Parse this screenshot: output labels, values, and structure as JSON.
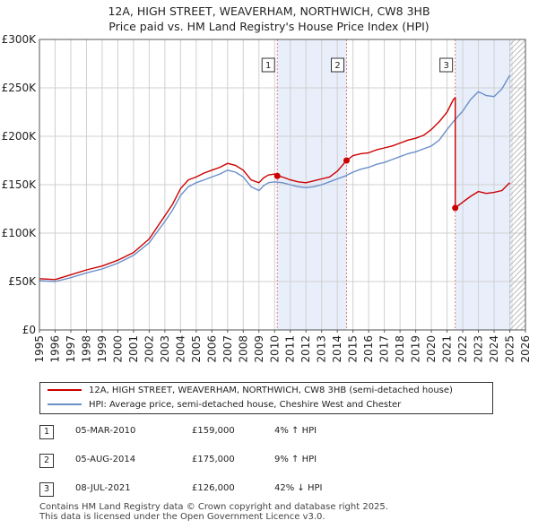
{
  "title": {
    "line1": "12A, HIGH STREET, WEAVERHAM, NORTHWICH, CW8 3HB",
    "line2": "Price paid vs. HM Land Registry's House Price Index (HPI)"
  },
  "colors": {
    "price_line": "#cc0000",
    "hpi_line": "#6b8fc9",
    "shade": "#e8eefa",
    "marker_line": "#e08080",
    "grid": "#d0d0d0",
    "hatch": "#999999"
  },
  "chart_data": {
    "type": "line",
    "xlim": [
      1995,
      2026
    ],
    "ylim": [
      0,
      300000
    ],
    "x_ticks": [
      "1995",
      "1996",
      "1997",
      "1998",
      "1999",
      "2000",
      "2001",
      "2002",
      "2003",
      "2004",
      "2005",
      "2006",
      "2007",
      "2008",
      "2009",
      "2010",
      "2011",
      "2012",
      "2013",
      "2014",
      "2015",
      "2016",
      "2017",
      "2018",
      "2019",
      "2020",
      "2021",
      "2022",
      "2023",
      "2024",
      "2025",
      "2026"
    ],
    "y_ticks": [
      {
        "value": 0,
        "label": "£0"
      },
      {
        "value": 50000,
        "label": "£50K"
      },
      {
        "value": 100000,
        "label": "£100K"
      },
      {
        "value": 150000,
        "label": "£150K"
      },
      {
        "value": 200000,
        "label": "£200K"
      },
      {
        "value": 250000,
        "label": "£250K"
      },
      {
        "value": 300000,
        "label": "£300K"
      }
    ],
    "shaded_ranges": [
      [
        2010.17,
        2014.59
      ],
      [
        2021.52,
        2025.2
      ]
    ],
    "hatched_from": 2025.0,
    "series": [
      {
        "name": "12A, HIGH STREET, WEAVERHAM, NORTHWICH, CW8 3HB (semi-detached house)",
        "key": "price",
        "x": [
          1995,
          1996,
          1997,
          1998,
          1999,
          2000,
          2001,
          2002,
          2003,
          2003.5,
          2004,
          2004.5,
          2005,
          2005.5,
          2006,
          2006.5,
          2007,
          2007.5,
          2008,
          2008.5,
          2009,
          2009.3,
          2009.6,
          2010,
          2010.17,
          2010.5,
          2011,
          2011.5,
          2012,
          2012.5,
          2013,
          2013.5,
          2014,
          2014.59,
          2015,
          2015.5,
          2016,
          2016.5,
          2017,
          2017.5,
          2018,
          2018.5,
          2019,
          2019.5,
          2020,
          2020.5,
          2021,
          2021.4,
          2021.52,
          2021.52,
          2022,
          2022.5,
          2023,
          2023.5,
          2024,
          2024.5,
          2025
        ],
        "y": [
          53000,
          52000,
          57000,
          62000,
          66000,
          72000,
          80000,
          94000,
          118000,
          130000,
          146000,
          155000,
          158000,
          162000,
          165000,
          168000,
          172000,
          170000,
          165000,
          155000,
          152000,
          157000,
          160000,
          161000,
          159000,
          158000,
          155000,
          153000,
          152000,
          154000,
          156000,
          158000,
          164000,
          175000,
          180000,
          182000,
          183000,
          186000,
          188000,
          190000,
          193000,
          196000,
          198000,
          201000,
          207000,
          215000,
          225000,
          238000,
          240000,
          126000,
          132000,
          138000,
          143000,
          141000,
          142000,
          144000,
          152000
        ]
      },
      {
        "name": "HPI: Average price, semi-detached house, Cheshire West and Chester",
        "key": "hpi",
        "x": [
          1995,
          1996,
          1997,
          1998,
          1999,
          2000,
          2001,
          2002,
          2003,
          2003.5,
          2004,
          2004.5,
          2005,
          2005.5,
          2006,
          2006.5,
          2007,
          2007.5,
          2008,
          2008.5,
          2009,
          2009.3,
          2009.6,
          2010,
          2010.5,
          2011,
          2011.5,
          2012,
          2012.5,
          2013,
          2013.5,
          2014,
          2014.5,
          2015,
          2015.5,
          2016,
          2016.5,
          2017,
          2017.5,
          2018,
          2018.5,
          2019,
          2019.5,
          2020,
          2020.5,
          2021,
          2021.5,
          2022,
          2022.5,
          2023,
          2023.5,
          2024,
          2024.5,
          2025
        ],
        "y": [
          51000,
          50000,
          54000,
          59000,
          63000,
          69000,
          77000,
          90000,
          112000,
          124000,
          139000,
          148000,
          152000,
          155000,
          158000,
          161000,
          165000,
          163000,
          158000,
          148000,
          144000,
          149000,
          152000,
          153000,
          152000,
          150000,
          148000,
          147000,
          148000,
          150000,
          153000,
          156000,
          159000,
          163000,
          166000,
          168000,
          171000,
          173000,
          176000,
          179000,
          182000,
          184000,
          187000,
          190000,
          196000,
          207000,
          217000,
          226000,
          238000,
          246000,
          242000,
          241000,
          249000,
          263000
        ]
      }
    ],
    "sales": [
      {
        "num": "1",
        "x": 2010.17,
        "y": 159000
      },
      {
        "num": "2",
        "x": 2014.59,
        "y": 175000
      },
      {
        "num": "3",
        "x": 2021.52,
        "y": 126000
      }
    ]
  },
  "legend": {
    "price_label": "12A, HIGH STREET, WEAVERHAM, NORTHWICH, CW8 3HB (semi-detached house)",
    "hpi_label": "HPI: Average price, semi-detached house, Cheshire West and Chester"
  },
  "transactions": [
    {
      "num": "1",
      "date": "05-MAR-2010",
      "price": "£159,000",
      "hpi": "4% ↑ HPI"
    },
    {
      "num": "2",
      "date": "05-AUG-2014",
      "price": "£175,000",
      "hpi": "9% ↑ HPI"
    },
    {
      "num": "3",
      "date": "08-JUL-2021",
      "price": "£126,000",
      "hpi": "42% ↓ HPI"
    }
  ],
  "footer": {
    "line1": "Contains HM Land Registry data © Crown copyright and database right 2025.",
    "line2": "This data is licensed under the Open Government Licence v3.0."
  }
}
